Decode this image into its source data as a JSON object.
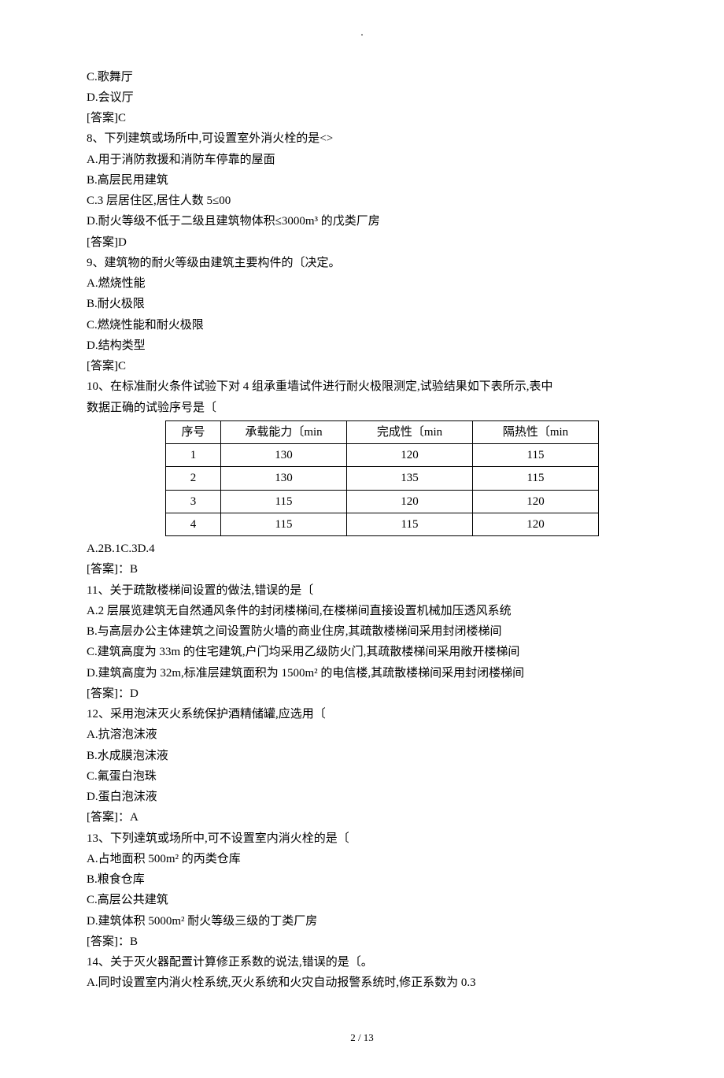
{
  "topdot": ".",
  "q7": {
    "optC": "C.歌舞厅",
    "optD": "D.会议厅",
    "ans": "[答案]C"
  },
  "q8": {
    "stem": "8、下列建筑或场所中,可设置室外消火栓的是<>",
    "optA": "A.用于消防救援和消防车停靠的屋面",
    "optB": "B.高层民用建筑",
    "optC": "C.3 层居住区,居住人数 5≤00",
    "optD": "D.耐火等级不低于二级且建筑物体积≤3000m³ 的戊类厂房",
    "ans": "[答案]D"
  },
  "q9": {
    "stem": "9、建筑物的耐火等级由建筑主要构件的〔决定。",
    "optA": "A.燃烧性能",
    "optB": "B.耐火极限",
    "optC": "C.燃烧性能和耐火极限",
    "optD": "D.结构类型",
    "ans": "[答案]C"
  },
  "q10": {
    "stem1": "10、在标准耐火条件试验下对 4 组承重墙试件进行耐火极限测定,试验结果如下表所示,表中",
    "stem2": "数据正确的试验序号是〔",
    "table": {
      "headers": [
        "序号",
        "承载能力〔min",
        "完成性〔min",
        "隔热性〔min"
      ],
      "rows": [
        [
          "1",
          "130",
          "120",
          "115"
        ],
        [
          "2",
          "130",
          "135",
          "115"
        ],
        [
          "3",
          "115",
          "120",
          "120"
        ],
        [
          "4",
          "115",
          "115",
          "120"
        ]
      ]
    },
    "opts": "A.2B.1C.3D.4",
    "ans": "[答案]：B"
  },
  "q11": {
    "stem": "11、关于疏散楼梯间设置的做法,错误的是〔",
    "optA": "A.2 层展览建筑无自然通风条件的封闭楼梯间,在楼梯间直接设置机械加压透风系统",
    "optB": "B.与高层办公主体建筑之间设置防火墙的商业住房,其疏散楼梯间采用封闭楼梯间",
    "optC": "C.建筑高度为 33m 的住宅建筑,户门均采用乙级防火门,其疏散楼梯间采用敞开楼梯间",
    "optD": "D.建筑高度为 32m,标准层建筑面积为 1500m² 的电信楼,其疏散楼梯间采用封闭楼梯间",
    "ans": "[答案]：D"
  },
  "q12": {
    "stem": "12、采用泡沫灭火系统保护酒精储罐,应选用〔",
    "optA": "A.抗溶泡沫液",
    "optB": "B.水成膜泡沫液",
    "optC": "C.氟蛋白泡珠",
    "optD": "D.蛋白泡沫液",
    "ans": "[答案]：A"
  },
  "q13": {
    "stem": "13、下列達筑或场所中,可不设置室内消火栓的是〔",
    "optA": "A.占地面积 500m² 的丙类仓库",
    "optB": "B.粮食仓库",
    "optC": "C.高层公共建筑",
    "optD": "D.建筑体积 5000m² 耐火等级三级的丁类厂房",
    "ans": "[答案]：B"
  },
  "q14": {
    "stem": "14、关于灭火器配置计算修正系数的说法,错误的是〔。",
    "optA": "A.同时设置室内消火栓系统,灭火系统和火灾自动报警系统时,修正系数为 0.3"
  },
  "footer": "2  /  13"
}
